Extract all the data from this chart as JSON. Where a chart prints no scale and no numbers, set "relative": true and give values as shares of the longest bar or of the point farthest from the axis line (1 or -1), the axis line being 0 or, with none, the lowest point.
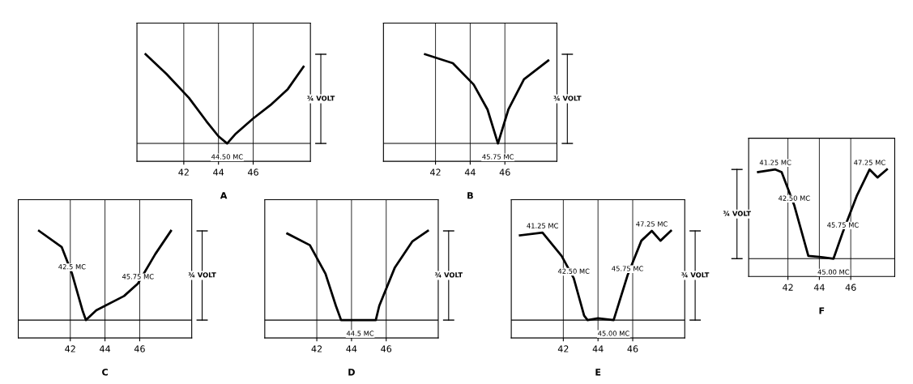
{
  "chart_data": [
    {
      "type": "line",
      "title": "A",
      "relative": true,
      "color": "#000000",
      "grid": true,
      "xlim": [
        39.3,
        49.3
      ],
      "xticks": [
        42,
        44,
        46
      ],
      "x": [
        39.8,
        41,
        42.3,
        43.3,
        44.0,
        44.5,
        45.0,
        46,
        47,
        48,
        48.9
      ],
      "values": [
        1,
        0.78,
        0.51,
        0.25,
        0.08,
        0,
        0.11,
        0.28,
        0.43,
        0.61,
        0.86
      ],
      "annotations": [
        "¾ VOLT",
        {
          "text": "44.50 MC",
          "x": 44.5,
          "y": 0
        }
      ]
    },
    {
      "type": "line",
      "title": "B",
      "relative": true,
      "color": "#000000",
      "grid": true,
      "xlim": [
        39.0,
        49.0
      ],
      "xticks": [
        42,
        44,
        46
      ],
      "x": [
        41.4,
        43.0,
        44.2,
        45.0,
        45.6,
        46.2,
        47.1,
        48.5
      ],
      "values": [
        1,
        0.9,
        0.66,
        0.38,
        0,
        0.38,
        0.72,
        0.93
      ],
      "annotations": [
        "¾ VOLT",
        {
          "text": "45.75 MC",
          "x": 45.6,
          "y": 0
        }
      ]
    },
    {
      "type": "line",
      "title": "C",
      "relative": true,
      "color": "#000000",
      "grid": true,
      "xlim": [
        39.0,
        49.0
      ],
      "xticks": [
        42,
        44,
        46
      ],
      "x": [
        40.2,
        41.5,
        42.1,
        42.7,
        42.9,
        43.5,
        45.1,
        45.9,
        46.9,
        47.8
      ],
      "values": [
        1,
        0.82,
        0.52,
        0.11,
        0,
        0.11,
        0.27,
        0.41,
        0.74,
        1
      ],
      "annotations": [
        "¾ VOLT",
        {
          "text": "42.5 MC",
          "x": 42.1,
          "y": 0.52
        },
        {
          "text": "45.75 MC",
          "x": 45.9,
          "y": 0.41
        }
      ]
    },
    {
      "type": "line",
      "title": "D",
      "relative": true,
      "color": "#000000",
      "grid": true,
      "xlim": [
        39.0,
        49.0
      ],
      "xticks": [
        42,
        44,
        46
      ],
      "x": [
        40.3,
        41.6,
        42.5,
        43.1,
        43.4,
        45.4,
        45.6,
        46.5,
        47.5,
        48.4
      ],
      "values": [
        0.97,
        0.84,
        0.52,
        0.16,
        0,
        0,
        0.16,
        0.59,
        0.88,
        1
      ],
      "annotations": [
        "¾ VOLT",
        {
          "text": "44.5 MC",
          "x": 44.5,
          "y": 0
        }
      ]
    },
    {
      "type": "line",
      "title": "E",
      "relative": true,
      "color": "#000000",
      "grid": true,
      "xlim": [
        39.0,
        49.0
      ],
      "xticks": [
        42,
        44,
        46
      ],
      "x": [
        39.5,
        40.8,
        41.9,
        42.6,
        43.2,
        43.4,
        44.0,
        44.9,
        45.7,
        46.5,
        47.1,
        47.6,
        48.2
      ],
      "values": [
        0.95,
        0.98,
        0.72,
        0.47,
        0.05,
        0,
        0.02,
        0,
        0.5,
        0.89,
        1,
        0.89,
        1
      ],
      "annotations": [
        "¾ VOLT",
        {
          "text": "41.25 MC",
          "x": 40.8,
          "y": 0.98
        },
        {
          "text": "42.50 MC",
          "x": 42.6,
          "y": 0.47
        },
        {
          "text": "47.25 MC",
          "x": 47.1,
          "y": 1
        },
        {
          "text": "45.75 MC",
          "x": 45.7,
          "y": 0.5
        },
        {
          "text": "45.00 MC",
          "x": 44.9,
          "y": 0
        }
      ]
    },
    {
      "type": "line",
      "title": "F",
      "relative": true,
      "color": "#000000",
      "grid": true,
      "xlim": [
        39.5,
        48.8
      ],
      "xticks": [
        42,
        44,
        46
      ],
      "x": [
        40.1,
        41.2,
        41.6,
        42.4,
        43.3,
        44.0,
        44.9,
        45.5,
        46.4,
        47.2,
        47.7,
        48.3
      ],
      "values": [
        0.97,
        1,
        0.97,
        0.6,
        0.03,
        0.02,
        0,
        0.3,
        0.71,
        1,
        0.91,
        1
      ],
      "annotations": [
        "¾ VOLT",
        {
          "text": "41.25 MC",
          "x": 41.2,
          "y": 1
        },
        {
          "text": "42.50 MC",
          "x": 42.4,
          "y": 0.6
        },
        {
          "text": "47.25 MC",
          "x": 47.2,
          "y": 1
        },
        {
          "text": "45.75 MC",
          "x": 45.5,
          "y": 0.3
        },
        {
          "text": "45.00 MC",
          "x": 44.9,
          "y": 0
        }
      ]
    }
  ]
}
